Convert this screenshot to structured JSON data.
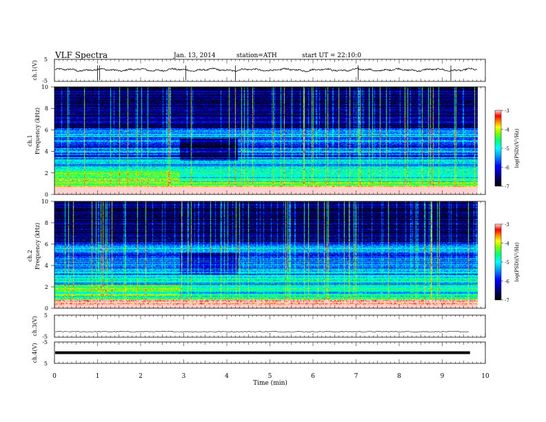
{
  "header": {
    "title": "VLF  Spectra",
    "date": "Jan. 13, 2014",
    "station": "station=ATH",
    "start": "start  UT  =   22:10:0"
  },
  "chart_data": [
    {
      "type": "line",
      "name": "ch1-waveform",
      "ylabel": "ch.1(V)",
      "ylim": [
        -5,
        5
      ],
      "yticks": [
        "5",
        "-5"
      ],
      "x_range": [
        0,
        10
      ],
      "baseline": 0.2,
      "spikes": [
        1.0,
        1.05,
        3.05,
        4.2,
        7.05,
        9.2
      ]
    },
    {
      "type": "heatmap",
      "name": "ch1-spectrogram",
      "ylabel": "Frequency  (kHz)",
      "channel_label": "ch.1",
      "ylim": [
        0,
        10
      ],
      "yticks": [
        "0",
        "2",
        "4",
        "6",
        "8",
        "10"
      ],
      "x_range": [
        0,
        9.82
      ],
      "colorbar": {
        "label": "log(PSD)(V²/Hz)",
        "range": [
          -7,
          -3
        ],
        "ticks": [
          "-3",
          "-4",
          "-5",
          "-6",
          "-7"
        ]
      }
    },
    {
      "type": "heatmap",
      "name": "ch2-spectrogram",
      "ylabel": "Frequency  (kHz)",
      "channel_label": "ch.2",
      "ylim": [
        0,
        10
      ],
      "yticks": [
        "0",
        "2",
        "4",
        "6",
        "8",
        "10"
      ],
      "x_range": [
        0,
        9.82
      ],
      "colorbar": {
        "label": "log(PSD)(V²/Hz)",
        "range": [
          -7,
          -3
        ],
        "ticks": [
          "-3",
          "-4",
          "-5",
          "-6",
          "-7"
        ]
      }
    },
    {
      "type": "line",
      "name": "ch3-waveform",
      "ylabel": "ch.3(V)",
      "ylim": [
        -5,
        5
      ],
      "yticks": [
        "5",
        "-5"
      ],
      "x_range": [
        0,
        9.82
      ],
      "baseline": -2.5
    },
    {
      "type": "line",
      "name": "ch4-waveform",
      "ylabel": "ch.4(V)",
      "ylim": [
        -5,
        5
      ],
      "yticks": [
        "-5",
        "5"
      ],
      "x_range": [
        0,
        9.82
      ],
      "baseline": 0
    }
  ],
  "xaxis": {
    "label": "Time  (min)",
    "ticks": [
      "0",
      "1",
      "2",
      "3",
      "4",
      "5",
      "6",
      "7",
      "8",
      "9",
      "10"
    ]
  },
  "colors": {
    "palette": [
      "#000000",
      "#000080",
      "#0000ff",
      "#00a0ff",
      "#00ffff",
      "#00ff80",
      "#80ff00",
      "#ffff00",
      "#ff8000",
      "#ff0000",
      "#ff8080",
      "#ffffff"
    ]
  }
}
